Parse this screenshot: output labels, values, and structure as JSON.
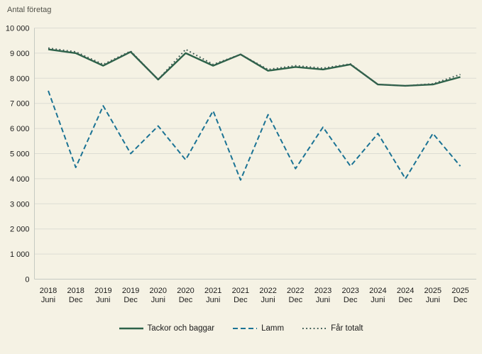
{
  "page": {
    "background_color": "#f5f2e4",
    "grid_color": "#ddddd3",
    "axis_color": "#c6cac2",
    "tick_text_color": "#1c1c1c"
  },
  "chart_data": {
    "type": "line",
    "title": "Antal företag",
    "xlabel": "",
    "ylabel": "Antal företag",
    "ylim": [
      0,
      10000
    ],
    "grid": true,
    "legend_position": "bottom",
    "y_ticks": [
      {
        "value": 0,
        "label": "0"
      },
      {
        "value": 1000,
        "label": "1 000"
      },
      {
        "value": 2000,
        "label": "2 000"
      },
      {
        "value": 3000,
        "label": "3 000"
      },
      {
        "value": 4000,
        "label": "4 000"
      },
      {
        "value": 5000,
        "label": "5 000"
      },
      {
        "value": 6000,
        "label": "6 000"
      },
      {
        "value": 7000,
        "label": "7 000"
      },
      {
        "value": 8000,
        "label": "8 000"
      },
      {
        "value": 9000,
        "label": "9 000"
      },
      {
        "value": 10000,
        "label": "10 000"
      }
    ],
    "categories": [
      {
        "year": "2018",
        "month": "Juni"
      },
      {
        "year": "2018",
        "month": "Dec"
      },
      {
        "year": "2019",
        "month": "Juni"
      },
      {
        "year": "2019",
        "month": "Dec"
      },
      {
        "year": "2020",
        "month": "Juni"
      },
      {
        "year": "2020",
        "month": "Dec"
      },
      {
        "year": "2021",
        "month": "Juni"
      },
      {
        "year": "2021",
        "month": "Dec"
      },
      {
        "year": "2022",
        "month": "Juni"
      },
      {
        "year": "2022",
        "month": "Dec"
      },
      {
        "year": "2023",
        "month": "Juni"
      },
      {
        "year": "2023",
        "month": "Dec"
      },
      {
        "year": "2024",
        "month": "Juni"
      },
      {
        "year": "2024",
        "month": "Dec"
      },
      {
        "year": "2025",
        "month": "Juni"
      },
      {
        "year": "2025",
        "month": "Dec"
      }
    ],
    "series": [
      {
        "name": "Tackor och baggar",
        "style": "solid",
        "color": "#2d6249",
        "values": [
          9150,
          9000,
          8500,
          9050,
          7950,
          9000,
          8500,
          8950,
          8300,
          8450,
          8350,
          8550,
          7750,
          7700,
          7750,
          8050
        ]
      },
      {
        "name": "Lamm",
        "style": "dashed",
        "color": "#1b7394",
        "values": [
          7500,
          4450,
          6900,
          5000,
          6100,
          4750,
          6700,
          3950,
          6550,
          4400,
          6050,
          4500,
          5800,
          4000,
          5800,
          4500
        ]
      },
      {
        "name": "Får totalt",
        "style": "dotted",
        "color": "#3f5c55",
        "values": [
          9200,
          9050,
          8550,
          9080,
          7950,
          9150,
          8550,
          8950,
          8350,
          8500,
          8400,
          8570,
          7750,
          7700,
          7780,
          8150
        ]
      }
    ]
  }
}
